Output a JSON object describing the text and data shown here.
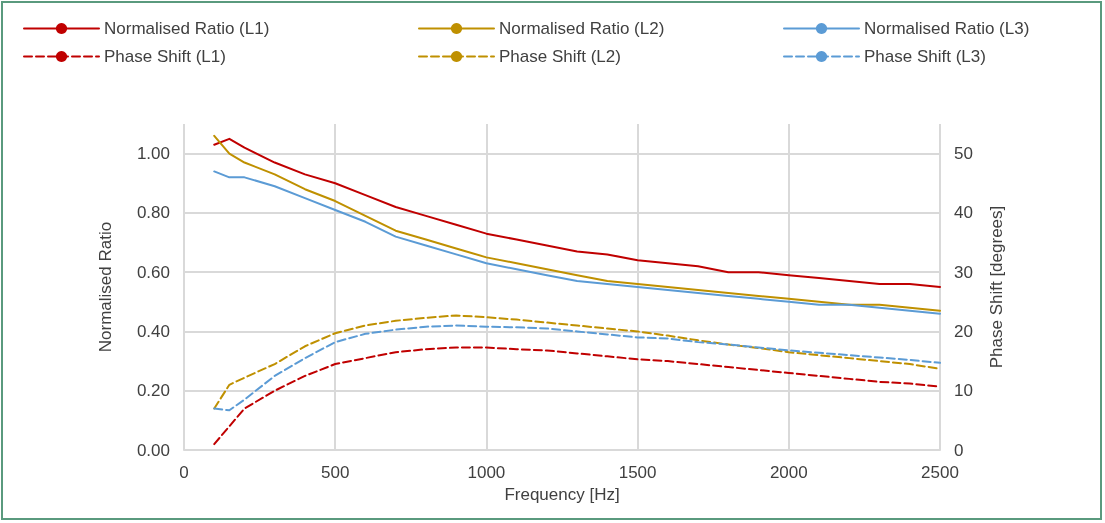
{
  "chart_data": {
    "type": "line",
    "xlabel": "Frequency [Hz]",
    "ylabel": "Normalised Ratio",
    "y2label": "Phase Shift [degrees]",
    "x": [
      100,
      150,
      200,
      300,
      400,
      500,
      600,
      700,
      800,
      900,
      1000,
      1100,
      1200,
      1300,
      1400,
      1500,
      1600,
      1700,
      1800,
      1900,
      2000,
      2100,
      2200,
      2300,
      2400,
      2500
    ],
    "xlim": [
      0,
      2500
    ],
    "xticks": [
      0,
      500,
      1000,
      1500,
      2000,
      2500
    ],
    "ylim": [
      0,
      1.1
    ],
    "yticks": [
      {
        "value": 0,
        "label": "0.00"
      },
      {
        "value": 0.2,
        "label": "0.20"
      },
      {
        "value": 0.4,
        "label": "0.40"
      },
      {
        "value": 0.6,
        "label": "0.60"
      },
      {
        "value": 0.8,
        "label": "0.80"
      },
      {
        "value": 1,
        "label": "1.00"
      }
    ],
    "y2lim": [
      0,
      55
    ],
    "y2ticks": [
      0,
      10,
      20,
      30,
      40,
      50
    ],
    "grid": true,
    "legend": "top",
    "marker": "none",
    "series": [
      {
        "name": "Normalised Ratio (L1)",
        "color": "#c00000",
        "line_style": "solid",
        "values": [
          1.03,
          1.05,
          1.02,
          0.97,
          0.93,
          0.9,
          0.86,
          0.82,
          0.79,
          0.76,
          0.73,
          0.71,
          0.69,
          0.67,
          0.66,
          0.64,
          0.63,
          0.62,
          0.6,
          0.6,
          0.59,
          0.58,
          0.57,
          0.56,
          0.56,
          0.55
        ]
      },
      {
        "name": "Normalised Ratio (L2)",
        "color": "#bf9000",
        "line_style": "solid",
        "values": [
          1.06,
          1.0,
          0.97,
          0.93,
          0.88,
          0.84,
          0.79,
          0.74,
          0.71,
          0.68,
          0.65,
          0.63,
          0.61,
          0.59,
          0.57,
          0.56,
          0.55,
          0.54,
          0.53,
          0.52,
          0.51,
          0.5,
          0.49,
          0.49,
          0.48,
          0.47
        ]
      },
      {
        "name": "Normalised Ratio (L3)",
        "color": "#5b9bd5",
        "line_style": "solid",
        "values": [
          0.94,
          0.92,
          0.92,
          0.89,
          0.85,
          0.81,
          0.77,
          0.72,
          0.69,
          0.66,
          0.63,
          0.61,
          0.59,
          0.57,
          0.56,
          0.55,
          0.54,
          0.53,
          0.52,
          0.51,
          0.5,
          0.49,
          0.49,
          0.48,
          0.47,
          0.46
        ]
      },
      {
        "name": "Phase Shift (L1)",
        "color": "#c00000",
        "line_style": "dashed",
        "axis": "y2",
        "values": [
          1,
          4,
          7,
          10,
          12.5,
          14.5,
          15.5,
          16.5,
          17,
          17.3,
          17.3,
          17,
          16.8,
          16.3,
          15.8,
          15.3,
          15,
          14.5,
          14,
          13.5,
          13,
          12.5,
          12,
          11.5,
          11.2,
          10.7
        ]
      },
      {
        "name": "Phase Shift (L2)",
        "color": "#bf9000",
        "line_style": "dashed",
        "axis": "y2",
        "values": [
          7,
          11,
          12.2,
          14.5,
          17.5,
          19.7,
          21,
          21.8,
          22.3,
          22.7,
          22.4,
          22,
          21.5,
          21,
          20.5,
          20,
          19.3,
          18.5,
          17.8,
          17.2,
          16.5,
          16,
          15.5,
          15,
          14.5,
          13.7
        ]
      },
      {
        "name": "Phase Shift (L3)",
        "color": "#5b9bd5",
        "line_style": "dashed",
        "axis": "y2",
        "values": [
          7,
          6.7,
          8.5,
          12.5,
          15.5,
          18.2,
          19.6,
          20.3,
          20.8,
          21,
          20.8,
          20.7,
          20.5,
          20,
          19.5,
          19,
          18.8,
          18.2,
          17.8,
          17.3,
          16.8,
          16.4,
          16,
          15.6,
          15.2,
          14.7
        ]
      }
    ]
  }
}
